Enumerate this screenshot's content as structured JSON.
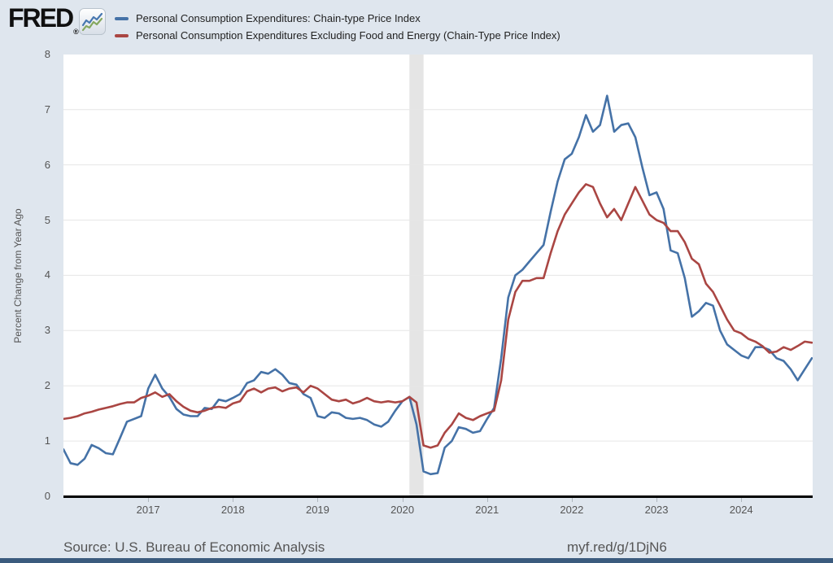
{
  "header": {
    "logo_text": "FRED",
    "registered_mark": "®",
    "logo_icon": "line-chart-icon"
  },
  "footer": {
    "source": "Source: U.S. Bureau of Economic Analysis",
    "permalink": "myf.red/g/1DjN6"
  },
  "colors": {
    "page_background": "#dfe6ee",
    "plot_background": "#ffffff",
    "gridline": "#e6e6e6",
    "recession_band": "#e5e5e5",
    "axis_line": "#000000",
    "bottom_bar": "#3b5b7e",
    "blue_series": "#4572a7",
    "red_series": "#aa4643"
  },
  "chart_data": {
    "type": "line",
    "frequency": "monthly",
    "x_start": "2016-01",
    "x_end": "2024-11",
    "x_tick_years": [
      "2017",
      "2018",
      "2019",
      "2020",
      "2021",
      "2022",
      "2023",
      "2024"
    ],
    "ylabel": "Percent Change from Year Ago",
    "y_ticks": [
      "0",
      "1",
      "2",
      "3",
      "4",
      "5",
      "6",
      "7",
      "8"
    ],
    "ylim": [
      0,
      8
    ],
    "grid": "horizontal",
    "legend_position": "top-left",
    "recession_shading": {
      "start": "2020-02",
      "end": "2020-04"
    },
    "series": [
      {
        "name": "Personal Consumption Expenditures: Chain-type Price Index",
        "color": "#4572a7",
        "values": [
          0.85,
          0.6,
          0.57,
          0.68,
          0.93,
          0.87,
          0.78,
          0.76,
          1.05,
          1.35,
          1.4,
          1.45,
          1.95,
          2.2,
          1.95,
          1.8,
          1.58,
          1.48,
          1.45,
          1.45,
          1.6,
          1.58,
          1.75,
          1.72,
          1.78,
          1.85,
          2.05,
          2.1,
          2.25,
          2.22,
          2.3,
          2.2,
          2.05,
          2.02,
          1.85,
          1.78,
          1.45,
          1.42,
          1.52,
          1.5,
          1.42,
          1.4,
          1.42,
          1.38,
          1.3,
          1.26,
          1.35,
          1.55,
          1.72,
          1.8,
          1.3,
          0.45,
          0.4,
          0.42,
          0.88,
          1.0,
          1.25,
          1.22,
          1.15,
          1.18,
          1.4,
          1.6,
          2.5,
          3.6,
          4.0,
          4.1,
          4.25,
          4.4,
          4.55,
          5.15,
          5.7,
          6.1,
          6.2,
          6.5,
          6.9,
          6.6,
          6.72,
          7.25,
          6.6,
          6.72,
          6.75,
          6.5,
          5.95,
          5.45,
          5.5,
          5.2,
          4.45,
          4.4,
          3.95,
          3.25,
          3.35,
          3.5,
          3.45,
          3.0,
          2.75,
          2.65,
          2.55,
          2.5,
          2.7,
          2.7,
          2.65,
          2.5,
          2.45,
          2.3,
          2.1,
          2.3,
          2.5
        ]
      },
      {
        "name": "Personal Consumption Expenditures Excluding Food and Energy (Chain-Type Price Index)",
        "color": "#aa4643",
        "values": [
          1.4,
          1.42,
          1.45,
          1.5,
          1.53,
          1.57,
          1.6,
          1.63,
          1.67,
          1.7,
          1.7,
          1.78,
          1.82,
          1.88,
          1.8,
          1.85,
          1.72,
          1.62,
          1.55,
          1.52,
          1.55,
          1.6,
          1.62,
          1.6,
          1.68,
          1.72,
          1.9,
          1.95,
          1.88,
          1.95,
          1.97,
          1.9,
          1.95,
          1.97,
          1.88,
          2.0,
          1.95,
          1.85,
          1.75,
          1.72,
          1.75,
          1.68,
          1.72,
          1.78,
          1.72,
          1.7,
          1.72,
          1.7,
          1.72,
          1.8,
          1.7,
          0.92,
          0.88,
          0.92,
          1.15,
          1.3,
          1.5,
          1.42,
          1.38,
          1.45,
          1.5,
          1.55,
          2.1,
          3.2,
          3.7,
          3.9,
          3.9,
          3.95,
          3.95,
          4.4,
          4.8,
          5.1,
          5.3,
          5.5,
          5.65,
          5.6,
          5.3,
          5.05,
          5.2,
          5.0,
          5.3,
          5.6,
          5.35,
          5.1,
          5.0,
          4.95,
          4.8,
          4.8,
          4.6,
          4.3,
          4.2,
          3.85,
          3.7,
          3.45,
          3.2,
          3.0,
          2.95,
          2.85,
          2.8,
          2.72,
          2.6,
          2.62,
          2.7,
          2.65,
          2.72,
          2.8,
          2.78
        ]
      }
    ]
  }
}
